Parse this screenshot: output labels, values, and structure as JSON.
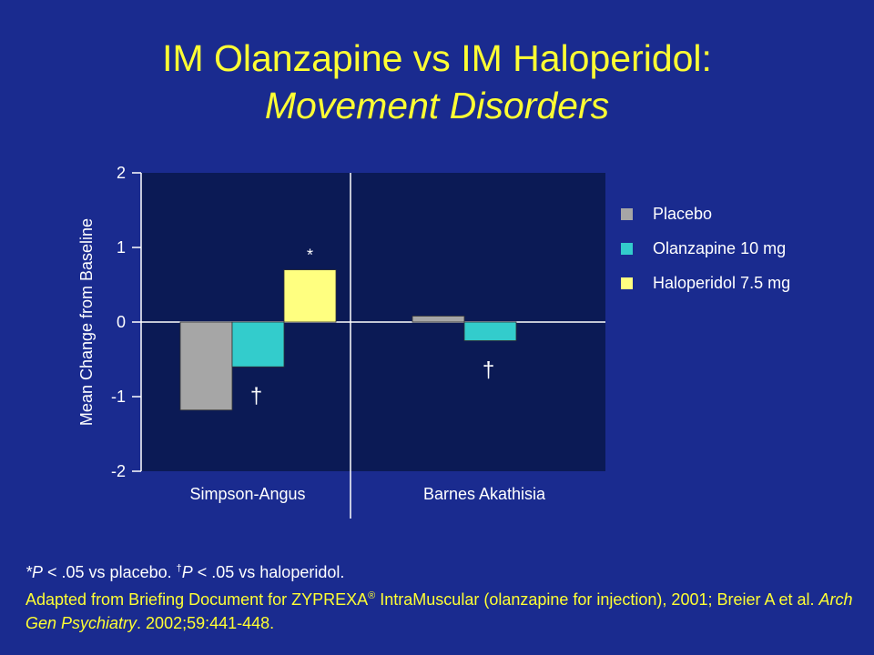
{
  "slide": {
    "title_line1": "IM Olanzapine vs IM Haloperidol:",
    "title_line2": "Movement Disorders"
  },
  "chart_data": {
    "type": "bar",
    "categories": [
      "Simpson-Angus",
      "Barnes Akathisia"
    ],
    "series": [
      {
        "name": "Placebo",
        "color": "#a6a6a6",
        "values": [
          -1.18,
          0.08
        ]
      },
      {
        "name": "Olanzapine 10 mg",
        "color": "#33cccc",
        "values": [
          -0.6,
          -0.25
        ]
      },
      {
        "name": "Haloperidol 7.5 mg",
        "color": "#ffff80",
        "values": [
          0.7,
          null
        ]
      }
    ],
    "ylabel": "Mean Change from Baseline",
    "ylim": [
      -2,
      2
    ],
    "yticks": [
      2,
      1,
      0,
      -1,
      -2
    ],
    "ytick_labels": [
      "2",
      "1",
      "0",
      "-1",
      "-2"
    ],
    "plot_background": "#0b1a55",
    "legend_position": "right",
    "annotations": [
      {
        "text": "*",
        "category": 0,
        "series": 2
      },
      {
        "text": "†",
        "category": 0,
        "series": 1
      },
      {
        "text": "†",
        "category": 1,
        "series": 1
      }
    ]
  },
  "footnote": {
    "line1_prefix": "*P",
    "line1_mid": " < .05 vs placebo. ",
    "dagger": "†",
    "line1_p": "P",
    "line1_suffix": " < .05 vs haloperidol.",
    "adapted_prefix": "Adapted from Briefing Document for ZYPREXA",
    "registered": "®",
    "adapted_mid": " IntraMuscular (olanzapine for injection), 2001; Breier A et al. ",
    "journal": "Arch Gen Psychiatry",
    "adapted_suffix": ". 2002;59:441-448."
  }
}
